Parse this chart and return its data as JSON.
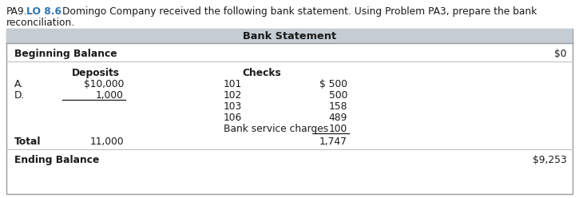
{
  "title_prefix": "PA9.",
  "title_lo": " LO 8.6",
  "title_rest": " Domingo Company received the following bank statement. Using Problem PA3, prepare the bank",
  "title_line2": "reconciliation.",
  "table_title": "Bank Statement",
  "header_bg": "#c5cdd4",
  "border_color": "#999999",
  "beginning_balance_label": "Beginning Balance",
  "beginning_balance_value": "$0",
  "deposits_header": "Deposits",
  "checks_header": "Checks",
  "deposit_rows": [
    {
      "label": "A.",
      "value": "$10,000"
    },
    {
      "label": "D.",
      "value": "1,000"
    }
  ],
  "check_rows": [
    {
      "check_num": "101",
      "amount": "$ 500"
    },
    {
      "check_num": "102",
      "amount": "500"
    },
    {
      "check_num": "103",
      "amount": "158"
    },
    {
      "check_num": "106",
      "amount": "489"
    },
    {
      "check_num": "Bank service charges",
      "amount": "100"
    }
  ],
  "total_label": "Total",
  "total_deposits": "11,000",
  "total_checks": "1,747",
  "ending_balance_label": "Ending Balance",
  "ending_balance_value": "$9,253",
  "lo_color": "#2e74b5",
  "text_color": "#1a1a1a",
  "font_size": 8.8
}
